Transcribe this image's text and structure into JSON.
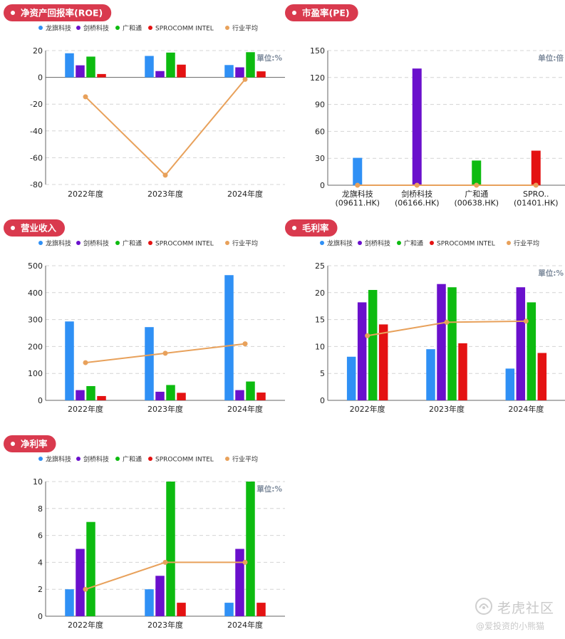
{
  "colors": {
    "series": [
      "#2f90f5",
      "#6a10cc",
      "#0dbb10",
      "#e41212"
    ],
    "average": "#e8a15b",
    "pill": "#d93a4e",
    "axis": "#666666",
    "grid": "#d4d4d4",
    "unit": "#7e8b9c"
  },
  "legend": [
    "龙旗科技",
    "剑桥科技",
    "广和通",
    "SPROCOMM INTEL",
    "行业平均"
  ],
  "chart_data": [
    {
      "id": "roe",
      "type": "bar",
      "title": "净资产回报率(ROE)",
      "unit": "單位:%",
      "categories": [
        "2022年度",
        "2023年度",
        "2024年度"
      ],
      "yticks": [
        20,
        0,
        -20,
        -40,
        -60,
        -80
      ],
      "ylim": [
        -80,
        20
      ],
      "series": [
        {
          "name": "龙旗科技",
          "values": [
            18,
            16,
            9.2
          ]
        },
        {
          "name": "剑桥科技",
          "values": [
            9,
            4.7,
            7.5
          ]
        },
        {
          "name": "广和通",
          "values": [
            15.5,
            18.5,
            18.8
          ]
        },
        {
          "name": "SPROCOMM INTEL",
          "values": [
            2.5,
            9.5,
            4.5
          ]
        }
      ],
      "average": {
        "name": "行业平均",
        "values": [
          -14.5,
          -73,
          -1.5
        ]
      }
    },
    {
      "id": "pe",
      "type": "bar",
      "title": "市盈率(PE)",
      "unit": "单位:倍",
      "categories": [
        "龙旗科技\n(09611.HK)",
        "剑桥科技\n(06166.HK)",
        "广和通\n(00638.HK)",
        "SPRO..\n(01401.HK)"
      ],
      "yticks": [
        150,
        120,
        90,
        60,
        30,
        0
      ],
      "ylim": [
        0,
        150
      ],
      "series": [
        {
          "name": "value",
          "values": [
            30.5,
            130,
            27.5,
            38.5
          ],
          "colors": [
            "#2f90f5",
            "#6a10cc",
            "#0dbb10",
            "#e41212"
          ]
        }
      ],
      "average": {
        "name": "行业平均",
        "values": [
          0,
          0,
          0,
          0
        ]
      }
    },
    {
      "id": "revenue",
      "type": "bar",
      "title": "营业收入",
      "unit": "",
      "categories": [
        "2022年度",
        "2023年度",
        "2024年度"
      ],
      "yticks": [
        500,
        400,
        300,
        200,
        100,
        0
      ],
      "ylim": [
        0,
        500
      ],
      "series": [
        {
          "name": "龙旗科技",
          "values": [
            293,
            272,
            465
          ]
        },
        {
          "name": "剑桥科技",
          "values": [
            38,
            32,
            38
          ]
        },
        {
          "name": "广和通",
          "values": [
            53,
            57,
            70
          ]
        },
        {
          "name": "SPROCOMM INTEL",
          "values": [
            16,
            28,
            29
          ]
        }
      ],
      "average": {
        "name": "行业平均",
        "values": [
          140,
          175,
          210
        ]
      }
    },
    {
      "id": "gross",
      "type": "bar",
      "title": "毛利率",
      "unit": "單位:%",
      "categories": [
        "2022年度",
        "2023年度",
        "2024年度"
      ],
      "yticks": [
        25,
        20,
        15,
        10,
        5,
        0
      ],
      "ylim": [
        0,
        25
      ],
      "series": [
        {
          "name": "龙旗科技",
          "values": [
            8.1,
            9.5,
            5.9
          ]
        },
        {
          "name": "剑桥科技",
          "values": [
            18.2,
            21.6,
            21
          ]
        },
        {
          "name": "广和通",
          "values": [
            20.5,
            21,
            18.2
          ]
        },
        {
          "name": "SPROCOMM INTEL",
          "values": [
            14.1,
            10.6,
            8.8
          ]
        }
      ],
      "average": {
        "name": "行业平均",
        "values": [
          12,
          14.5,
          14.7
        ]
      }
    },
    {
      "id": "net",
      "type": "bar",
      "title": "净利率",
      "unit": "單位:%",
      "categories": [
        "2022年度",
        "2023年度",
        "2024年度"
      ],
      "yticks": [
        10,
        8,
        6,
        4,
        2,
        0
      ],
      "ylim": [
        0,
        10
      ],
      "series": [
        {
          "name": "龙旗科技",
          "values": [
            2,
            2,
            1
          ]
        },
        {
          "name": "剑桥科技",
          "values": [
            5,
            3,
            5
          ]
        },
        {
          "name": "广和通",
          "values": [
            7,
            10,
            10
          ]
        },
        {
          "name": "SPROCOMM INTEL",
          "values": [
            0,
            1,
            1
          ]
        }
      ],
      "average": {
        "name": "行业平均",
        "values": [
          2,
          4,
          4
        ]
      }
    }
  ],
  "watermark": {
    "brand": "老虎社区",
    "user": "@爱投资的小熊猫"
  }
}
